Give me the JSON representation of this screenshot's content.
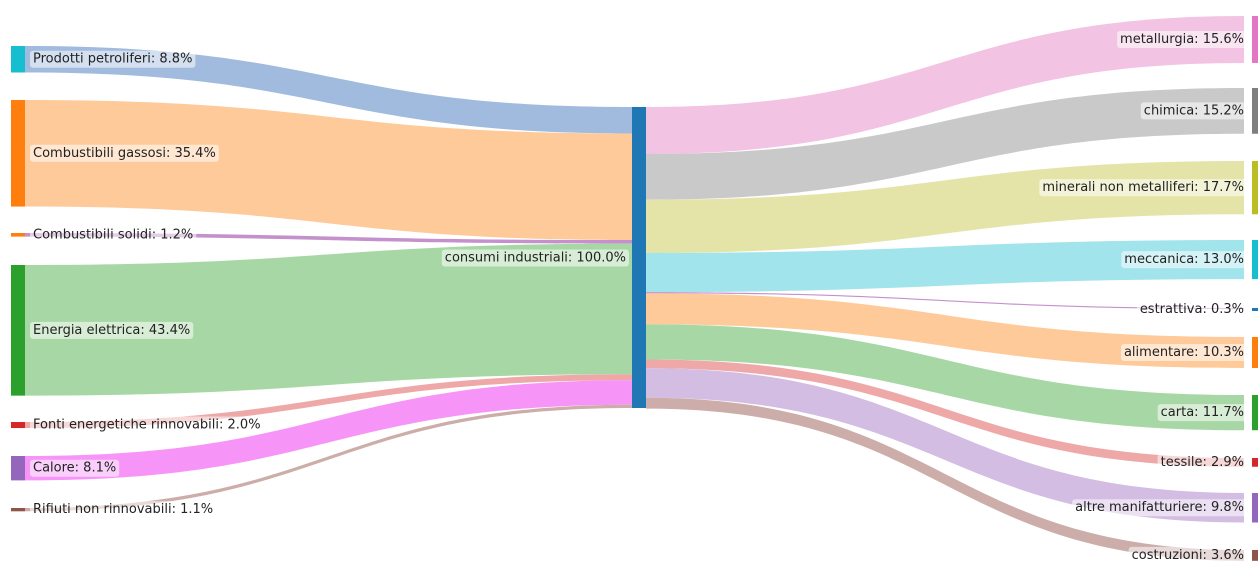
{
  "chart_data": {
    "type": "sankey",
    "center": {
      "name": "consumi industriali",
      "percent": 100.0,
      "label": "consumi industriali: 100.0%",
      "color": "#1f77b4"
    },
    "sources": [
      {
        "name": "Prodotti petroliferi",
        "percent": 8.8,
        "label": "Prodotti petroliferi: 8.8%",
        "node_color": "#17becf",
        "link_color": "#9cb7dc"
      },
      {
        "name": "Combustibili gassosi",
        "percent": 35.4,
        "label": "Combustibili gassosi: 35.4%",
        "node_color": "#ff7f0e",
        "link_color": "#fec793"
      },
      {
        "name": "Combustibili solidi",
        "percent": 1.2,
        "label": "Combustibili solidi: 1.2%",
        "node_color": "#ff7f0e",
        "link_color": "#c28bc9"
      },
      {
        "name": "Energia elettrica",
        "percent": 43.4,
        "label": "Energia elettrica: 43.4%",
        "node_color": "#2ca02c",
        "link_color": "#a2d5a0"
      },
      {
        "name": "Fonti energetiche rinnovabili",
        "percent": 2.0,
        "label": "Fonti energetiche rinnovabili: 2.0%",
        "node_color": "#d62728",
        "link_color": "#eda3a3"
      },
      {
        "name": "Calore",
        "percent": 8.1,
        "label": "Calore: 8.1%",
        "node_color": "#9467bd",
        "link_color": "#f78ef7"
      },
      {
        "name": "Rifiuti non rinnovabili",
        "percent": 1.1,
        "label": "Rifiuti non rinnovabili: 1.1%",
        "node_color": "#8c564b",
        "link_color": "#c9a9a4"
      }
    ],
    "targets": [
      {
        "name": "metallurgia",
        "percent": 15.6,
        "label": "metallurgia: 15.6%",
        "node_color": "#e377c2",
        "link_color": "#f1c0e0"
      },
      {
        "name": "chimica",
        "percent": 15.2,
        "label": "chimica: 15.2%",
        "node_color": "#7f7f7f",
        "link_color": "#c6c6c6"
      },
      {
        "name": "minerali non metalliferi",
        "percent": 17.7,
        "label": "minerali non metalliferi: 17.7%",
        "node_color": "#bcbd22",
        "link_color": "#e3e3a3"
      },
      {
        "name": "meccanica",
        "percent": 13.0,
        "label": "meccanica: 13.0%",
        "node_color": "#17becf",
        "link_color": "#9de3ea"
      },
      {
        "name": "estrattiva",
        "percent": 0.3,
        "label": "estrattiva: 0.3%",
        "node_color": "#1f77b4",
        "link_color": "#c28bc9"
      },
      {
        "name": "alimentare",
        "percent": 10.3,
        "label": "alimentare: 10.3%",
        "node_color": "#ff7f0e",
        "link_color": "#fec793"
      },
      {
        "name": "carta",
        "percent": 11.7,
        "label": "carta: 11.7%",
        "node_color": "#2ca02c",
        "link_color": "#a2d5a0"
      },
      {
        "name": "tessile",
        "percent": 2.9,
        "label": "tessile: 2.9%",
        "node_color": "#d62728",
        "link_color": "#eda3a3"
      },
      {
        "name": "altre manifatturiere",
        "percent": 9.8,
        "label": "altre manifatturiere: 9.8%",
        "node_color": "#9467bd",
        "link_color": "#d1b9e0"
      },
      {
        "name": "costruzioni",
        "percent": 3.6,
        "label": "costruzioni: 3.6%",
        "node_color": "#8c564b",
        "link_color": "#c9a9a4"
      }
    ]
  }
}
